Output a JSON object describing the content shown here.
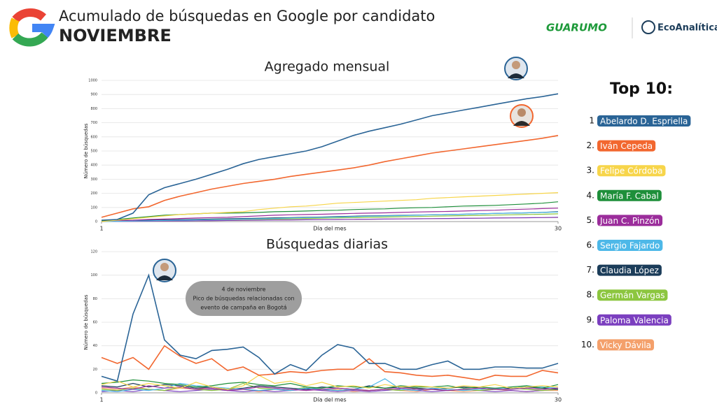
{
  "header": {
    "title": "Acumulado de búsquedas en Google por candidato",
    "subtitle": "NOVIEMBRE",
    "logos": [
      "GUARUMO",
      "EcoAnalítica"
    ]
  },
  "ranking": {
    "title": "Top 10:",
    "ranks": [
      "1",
      "2.",
      "3.",
      "4.",
      "5.",
      "6.",
      "7.",
      "8.",
      "9.",
      "10."
    ]
  },
  "chart_data": [
    {
      "type": "line",
      "title": "Agregado mensual",
      "x_label": "Día del mes",
      "y_label": "Número de búsquedas",
      "x": [
        1,
        2,
        3,
        4,
        5,
        6,
        7,
        8,
        9,
        10,
        11,
        12,
        13,
        14,
        15,
        16,
        17,
        18,
        19,
        20,
        21,
        22,
        23,
        24,
        25,
        26,
        27,
        28,
        29,
        30
      ],
      "xlim": [
        1,
        30
      ],
      "xticks": [
        1,
        30
      ],
      "ylim": [
        0,
        1000
      ],
      "yticks": [
        0,
        100,
        200,
        300,
        400,
        500,
        600,
        700,
        800,
        900,
        1000
      ],
      "grid": true,
      "series": [
        {
          "name": "Abelardo D. Espriella",
          "color": "#2a6496",
          "values": [
            10,
            15,
            60,
            190,
            240,
            270,
            300,
            335,
            370,
            410,
            440,
            460,
            480,
            500,
            530,
            570,
            610,
            640,
            665,
            690,
            720,
            750,
            770,
            790,
            810,
            830,
            850,
            870,
            885,
            905
          ]
        },
        {
          "name": "Iván Cepeda",
          "color": "#f2672f",
          "values": [
            30,
            60,
            90,
            105,
            150,
            180,
            205,
            230,
            250,
            270,
            285,
            300,
            320,
            335,
            350,
            365,
            380,
            400,
            425,
            445,
            465,
            485,
            500,
            515,
            530,
            545,
            560,
            575,
            590,
            610
          ]
        },
        {
          "name": "Felipe Córdoba",
          "color": "#f7d54a",
          "values": [
            0,
            10,
            20,
            30,
            40,
            50,
            55,
            60,
            65,
            70,
            85,
            95,
            105,
            110,
            120,
            130,
            135,
            140,
            145,
            150,
            155,
            165,
            170,
            175,
            180,
            185,
            190,
            195,
            200,
            205
          ]
        },
        {
          "name": "María F. Cabal",
          "color": "#1e8f3a",
          "values": [
            5,
            15,
            25,
            35,
            45,
            50,
            55,
            60,
            60,
            62,
            65,
            70,
            72,
            75,
            78,
            80,
            85,
            88,
            90,
            95,
            98,
            100,
            105,
            110,
            112,
            115,
            120,
            125,
            130,
            140
          ]
        },
        {
          "name": "Juan C. Pinzón",
          "color": "#9b2d9b",
          "values": [
            5,
            8,
            10,
            15,
            18,
            22,
            25,
            28,
            30,
            35,
            40,
            45,
            48,
            50,
            52,
            55,
            58,
            60,
            62,
            65,
            68,
            70,
            72,
            75,
            78,
            80,
            85,
            88,
            92,
            95
          ]
        },
        {
          "name": "Sergio Fajardo",
          "color": "#4db8e8",
          "values": [
            0,
            2,
            4,
            6,
            8,
            10,
            12,
            14,
            16,
            18,
            20,
            22,
            25,
            28,
            30,
            32,
            35,
            38,
            40,
            42,
            45,
            48,
            50,
            52,
            55,
            58,
            60,
            62,
            65,
            68
          ]
        },
        {
          "name": "Claudia López",
          "color": "#1c3d5a",
          "values": [
            3,
            5,
            8,
            10,
            12,
            14,
            16,
            18,
            20,
            22,
            24,
            26,
            28,
            30,
            32,
            35,
            38,
            40,
            42,
            44,
            46,
            48,
            50,
            52,
            55,
            58,
            60,
            62,
            65,
            70
          ]
        },
        {
          "name": "Germán Vargas",
          "color": "#8cc63f",
          "values": [
            2,
            4,
            6,
            8,
            10,
            12,
            13,
            14,
            15,
            16,
            17,
            18,
            20,
            22,
            24,
            26,
            28,
            30,
            32,
            34,
            36,
            38,
            40,
            42,
            44,
            46,
            48,
            50,
            52,
            55
          ]
        },
        {
          "name": "Paloma Valencia",
          "color": "#7b3fbf",
          "values": [
            0,
            1,
            2,
            3,
            4,
            5,
            6,
            7,
            8,
            9,
            10,
            11,
            12,
            13,
            14,
            15,
            16,
            17,
            18,
            19,
            20,
            21,
            22,
            23,
            24,
            25,
            26,
            27,
            28,
            30
          ]
        },
        {
          "name": "Vicky Dávila",
          "color": "#f4a06b",
          "values": [
            0,
            1,
            2,
            3,
            4,
            5,
            6,
            7,
            8,
            9,
            10,
            11,
            12,
            13,
            14,
            15,
            16,
            17,
            18,
            19,
            20,
            21,
            22,
            23,
            24,
            25,
            26,
            27,
            28,
            29
          ]
        }
      ]
    },
    {
      "type": "line",
      "title": "Búsquedas diarias",
      "x_label": "Día del mes",
      "y_label": "Número de búsquedas",
      "annotations": [
        "4 de noviembre",
        "Pico de búsquedas relacionadas con",
        "evento de campaña en Bogotá"
      ],
      "x": [
        1,
        2,
        3,
        4,
        5,
        6,
        7,
        8,
        9,
        10,
        11,
        12,
        13,
        14,
        15,
        16,
        17,
        18,
        19,
        20,
        21,
        22,
        23,
        24,
        25,
        26,
        27,
        28,
        29,
        30
      ],
      "xlim": [
        1,
        30
      ],
      "xticks": [
        1,
        30
      ],
      "ylim": [
        0,
        120
      ],
      "yticks": [
        0,
        20,
        40,
        60,
        80,
        100,
        120
      ],
      "grid": true,
      "series": [
        {
          "color": "#2a6496",
          "values": [
            14,
            10,
            67,
            100,
            45,
            32,
            29,
            36,
            37,
            39,
            30,
            16,
            24,
            19,
            32,
            41,
            38,
            25,
            25,
            20,
            20,
            24,
            27,
            20,
            20,
            22,
            22,
            21,
            21,
            25
          ]
        },
        {
          "color": "#f2672f",
          "values": [
            30,
            25,
            30,
            20,
            40,
            31,
            25,
            29,
            19,
            22,
            15,
            16,
            18,
            17,
            19,
            20,
            20,
            29,
            18,
            17,
            15,
            14,
            15,
            13,
            11,
            15,
            14,
            14,
            19,
            17
          ]
        },
        {
          "color": "#f7d54a",
          "values": [
            7,
            10,
            5,
            8,
            6,
            4,
            9,
            5,
            3,
            6,
            15,
            8,
            10,
            6,
            9,
            5,
            6,
            4,
            7,
            5,
            6,
            5,
            4,
            6,
            5,
            7,
            4,
            5,
            6,
            5
          ]
        },
        {
          "color": "#1e8f3a",
          "values": [
            8,
            9,
            11,
            10,
            8,
            7,
            5,
            6,
            8,
            9,
            7,
            6,
            8,
            5,
            4,
            6,
            5,
            5,
            4,
            6,
            5,
            5,
            6,
            4,
            5,
            4,
            5,
            6,
            4,
            7
          ]
        },
        {
          "color": "#9b2d9b",
          "values": [
            5,
            4,
            3,
            6,
            4,
            5,
            3,
            4,
            2,
            3,
            5,
            4,
            3,
            2,
            3,
            4,
            3,
            2,
            3,
            4,
            3,
            3,
            2,
            3,
            4,
            3,
            3,
            4,
            3,
            4
          ]
        },
        {
          "color": "#4db8e8",
          "values": [
            2,
            1,
            3,
            2,
            4,
            8,
            6,
            5,
            4,
            3,
            2,
            3,
            2,
            4,
            3,
            2,
            3,
            5,
            12,
            3,
            2,
            4,
            3,
            2,
            3,
            4,
            3,
            6,
            5,
            4
          ]
        },
        {
          "color": "#1c3d5a",
          "values": [
            6,
            5,
            8,
            5,
            7,
            6,
            4,
            5,
            3,
            4,
            6,
            5,
            4,
            3,
            5,
            4,
            3,
            6,
            4,
            5,
            4,
            3,
            4,
            5,
            4,
            3,
            4,
            5,
            4,
            3
          ]
        },
        {
          "color": "#8cc63f",
          "values": [
            3,
            2,
            4,
            3,
            2,
            5,
            3,
            2,
            3,
            8,
            4,
            3,
            2,
            5,
            3,
            2,
            3,
            2,
            3,
            2,
            4,
            3,
            2,
            3,
            2,
            3,
            4,
            3,
            2,
            3
          ]
        },
        {
          "color": "#7b3fbf",
          "values": [
            1,
            2,
            1,
            3,
            2,
            1,
            2,
            3,
            2,
            1,
            2,
            1,
            2,
            3,
            2,
            1,
            2,
            1,
            2,
            3,
            2,
            1,
            2,
            3,
            2,
            1,
            2,
            1,
            2,
            3
          ]
        },
        {
          "color": "#f4a06b",
          "values": [
            4,
            3,
            5,
            3,
            2,
            4,
            3,
            5,
            2,
            3,
            1,
            3,
            2,
            4,
            2,
            3,
            1,
            2,
            3,
            2,
            1,
            3,
            2,
            1,
            2,
            3,
            2,
            1,
            2,
            2
          ]
        }
      ]
    }
  ]
}
